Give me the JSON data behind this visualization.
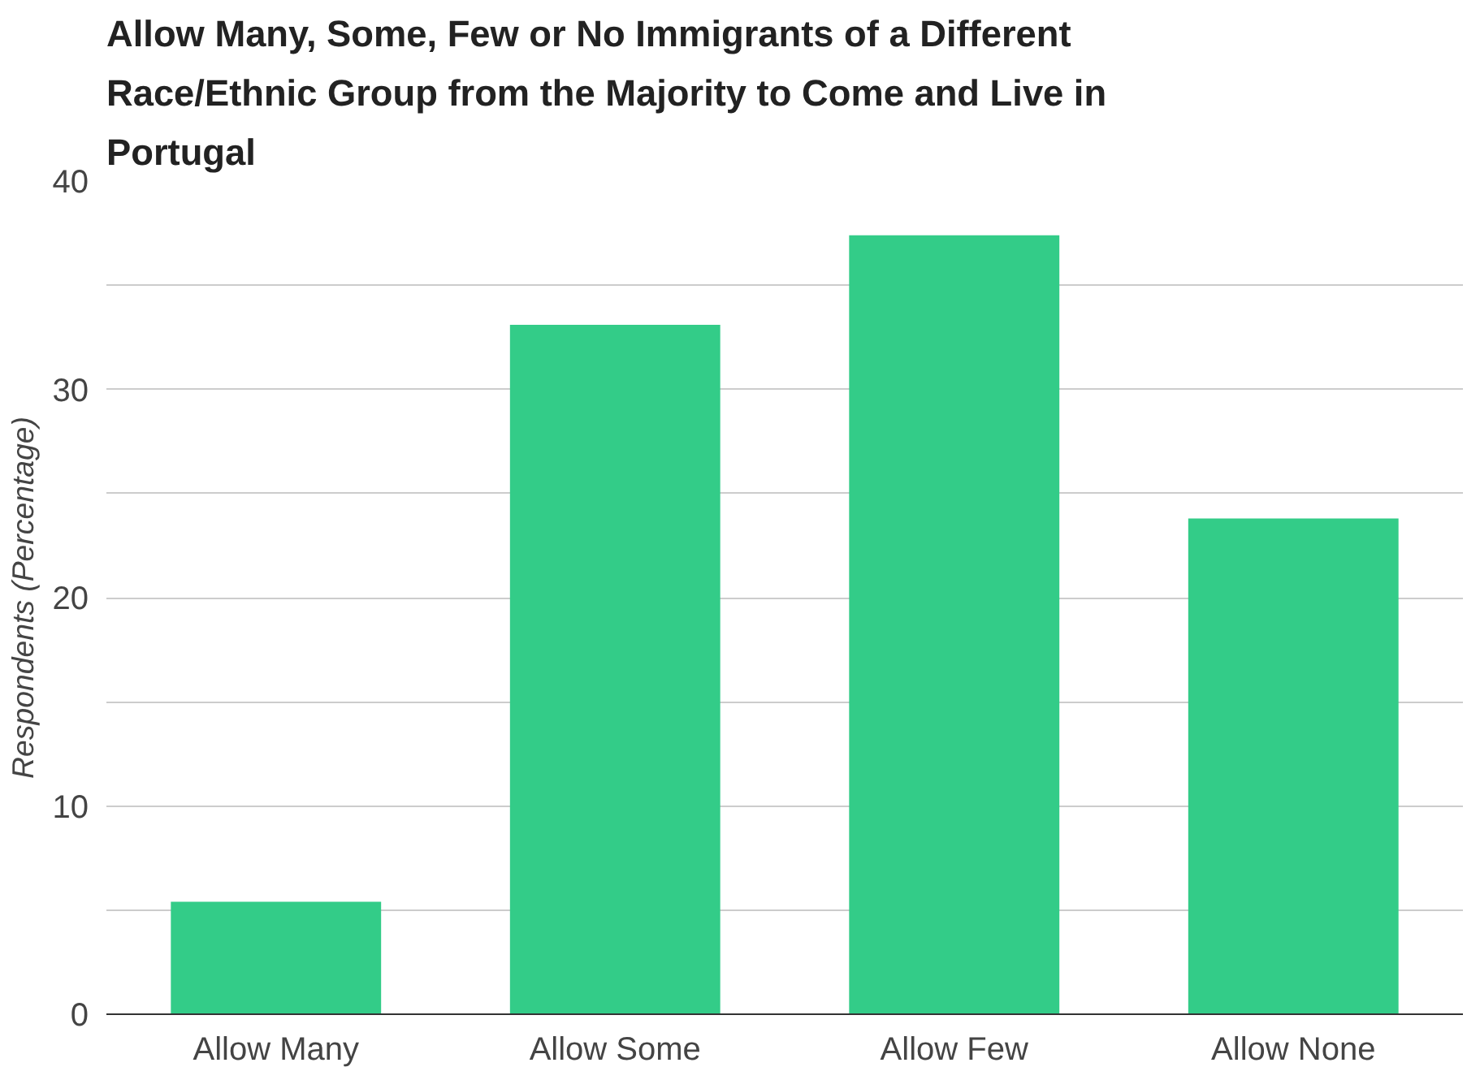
{
  "chart_data": {
    "type": "bar",
    "title": "Allow Many, Some, Few or No Immigrants of a Different\nRace/Ethnic Group from the Majority to Come and Live in\nPortugal",
    "ylabel": "Respondents (Percentage)",
    "categories": [
      "Allow Many",
      "Allow Some",
      "Allow Few",
      "Allow None"
    ],
    "values": [
      5.4,
      33.1,
      37.4,
      23.8
    ],
    "color": "#33cc88",
    "ylim": [
      0,
      40
    ],
    "yticks": [
      0,
      {
        "value": 5,
        "label": null
      },
      10,
      {
        "value": 15,
        "label": null
      },
      20,
      {
        "value": 25,
        "label": null
      },
      30,
      {
        "value": 35,
        "label": null
      },
      40
    ],
    "grid": "y"
  }
}
